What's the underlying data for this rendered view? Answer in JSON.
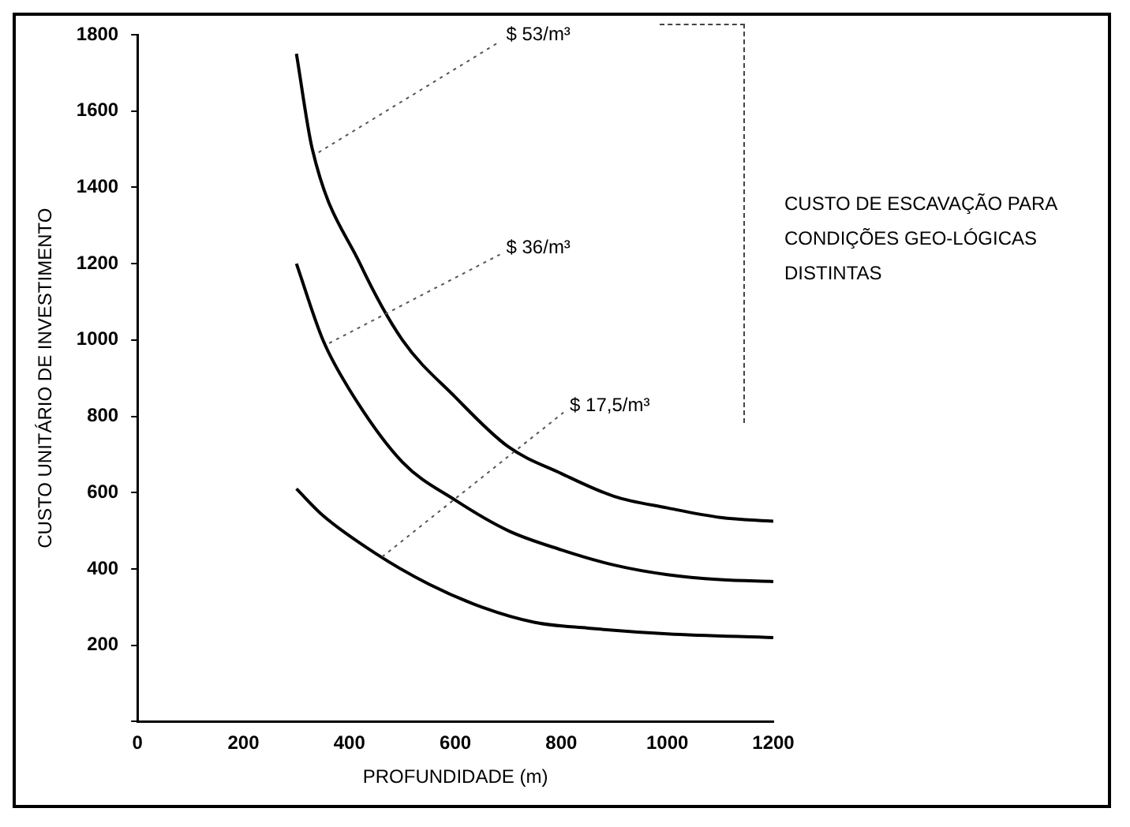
{
  "chart_data": {
    "type": "line",
    "xlabel": "PROFUNDIDADE (m)",
    "ylabel": "CUSTO UNITÁRIO DE INVESTIMENTO",
    "xlim": [
      0,
      1200
    ],
    "ylim": [
      0,
      1800
    ],
    "xticks": [
      0,
      200,
      400,
      600,
      800,
      1000,
      1200
    ],
    "yticks": [
      {
        "value": 0,
        "label": null
      },
      200,
      400,
      600,
      800,
      1000,
      1200,
      1400,
      1600,
      1800
    ],
    "grid": false,
    "legend": false,
    "marker": "none",
    "line_style": "solid",
    "series": [
      {
        "name": "$ 53/m³",
        "color": "#000000",
        "x": [
          300,
          330,
          420,
          500,
          600,
          700,
          800,
          900,
          1000,
          1100,
          1200
        ],
        "values": [
          1750,
          1500,
          1200,
          1000,
          850,
          720,
          650,
          590,
          560,
          535,
          525
        ]
      },
      {
        "name": "$ 36/m³",
        "color": "#000000",
        "x": [
          300,
          350,
          400,
          500,
          600,
          700,
          800,
          900,
          1000,
          1100,
          1200
        ],
        "values": [
          1200,
          1000,
          870,
          680,
          580,
          500,
          450,
          410,
          385,
          372,
          367
        ]
      },
      {
        "name": "$ 17,5/m³",
        "color": "#000000",
        "x": [
          300,
          350,
          450,
          550,
          650,
          750,
          850,
          1000,
          1200
        ],
        "values": [
          610,
          540,
          440,
          360,
          300,
          260,
          245,
          230,
          220
        ]
      }
    ],
    "annotations": [
      "CUSTO DE ESCAVAÇÃO PARA CONDIÇÕES GEO-LÓGICAS DISTINTAS"
    ]
  }
}
